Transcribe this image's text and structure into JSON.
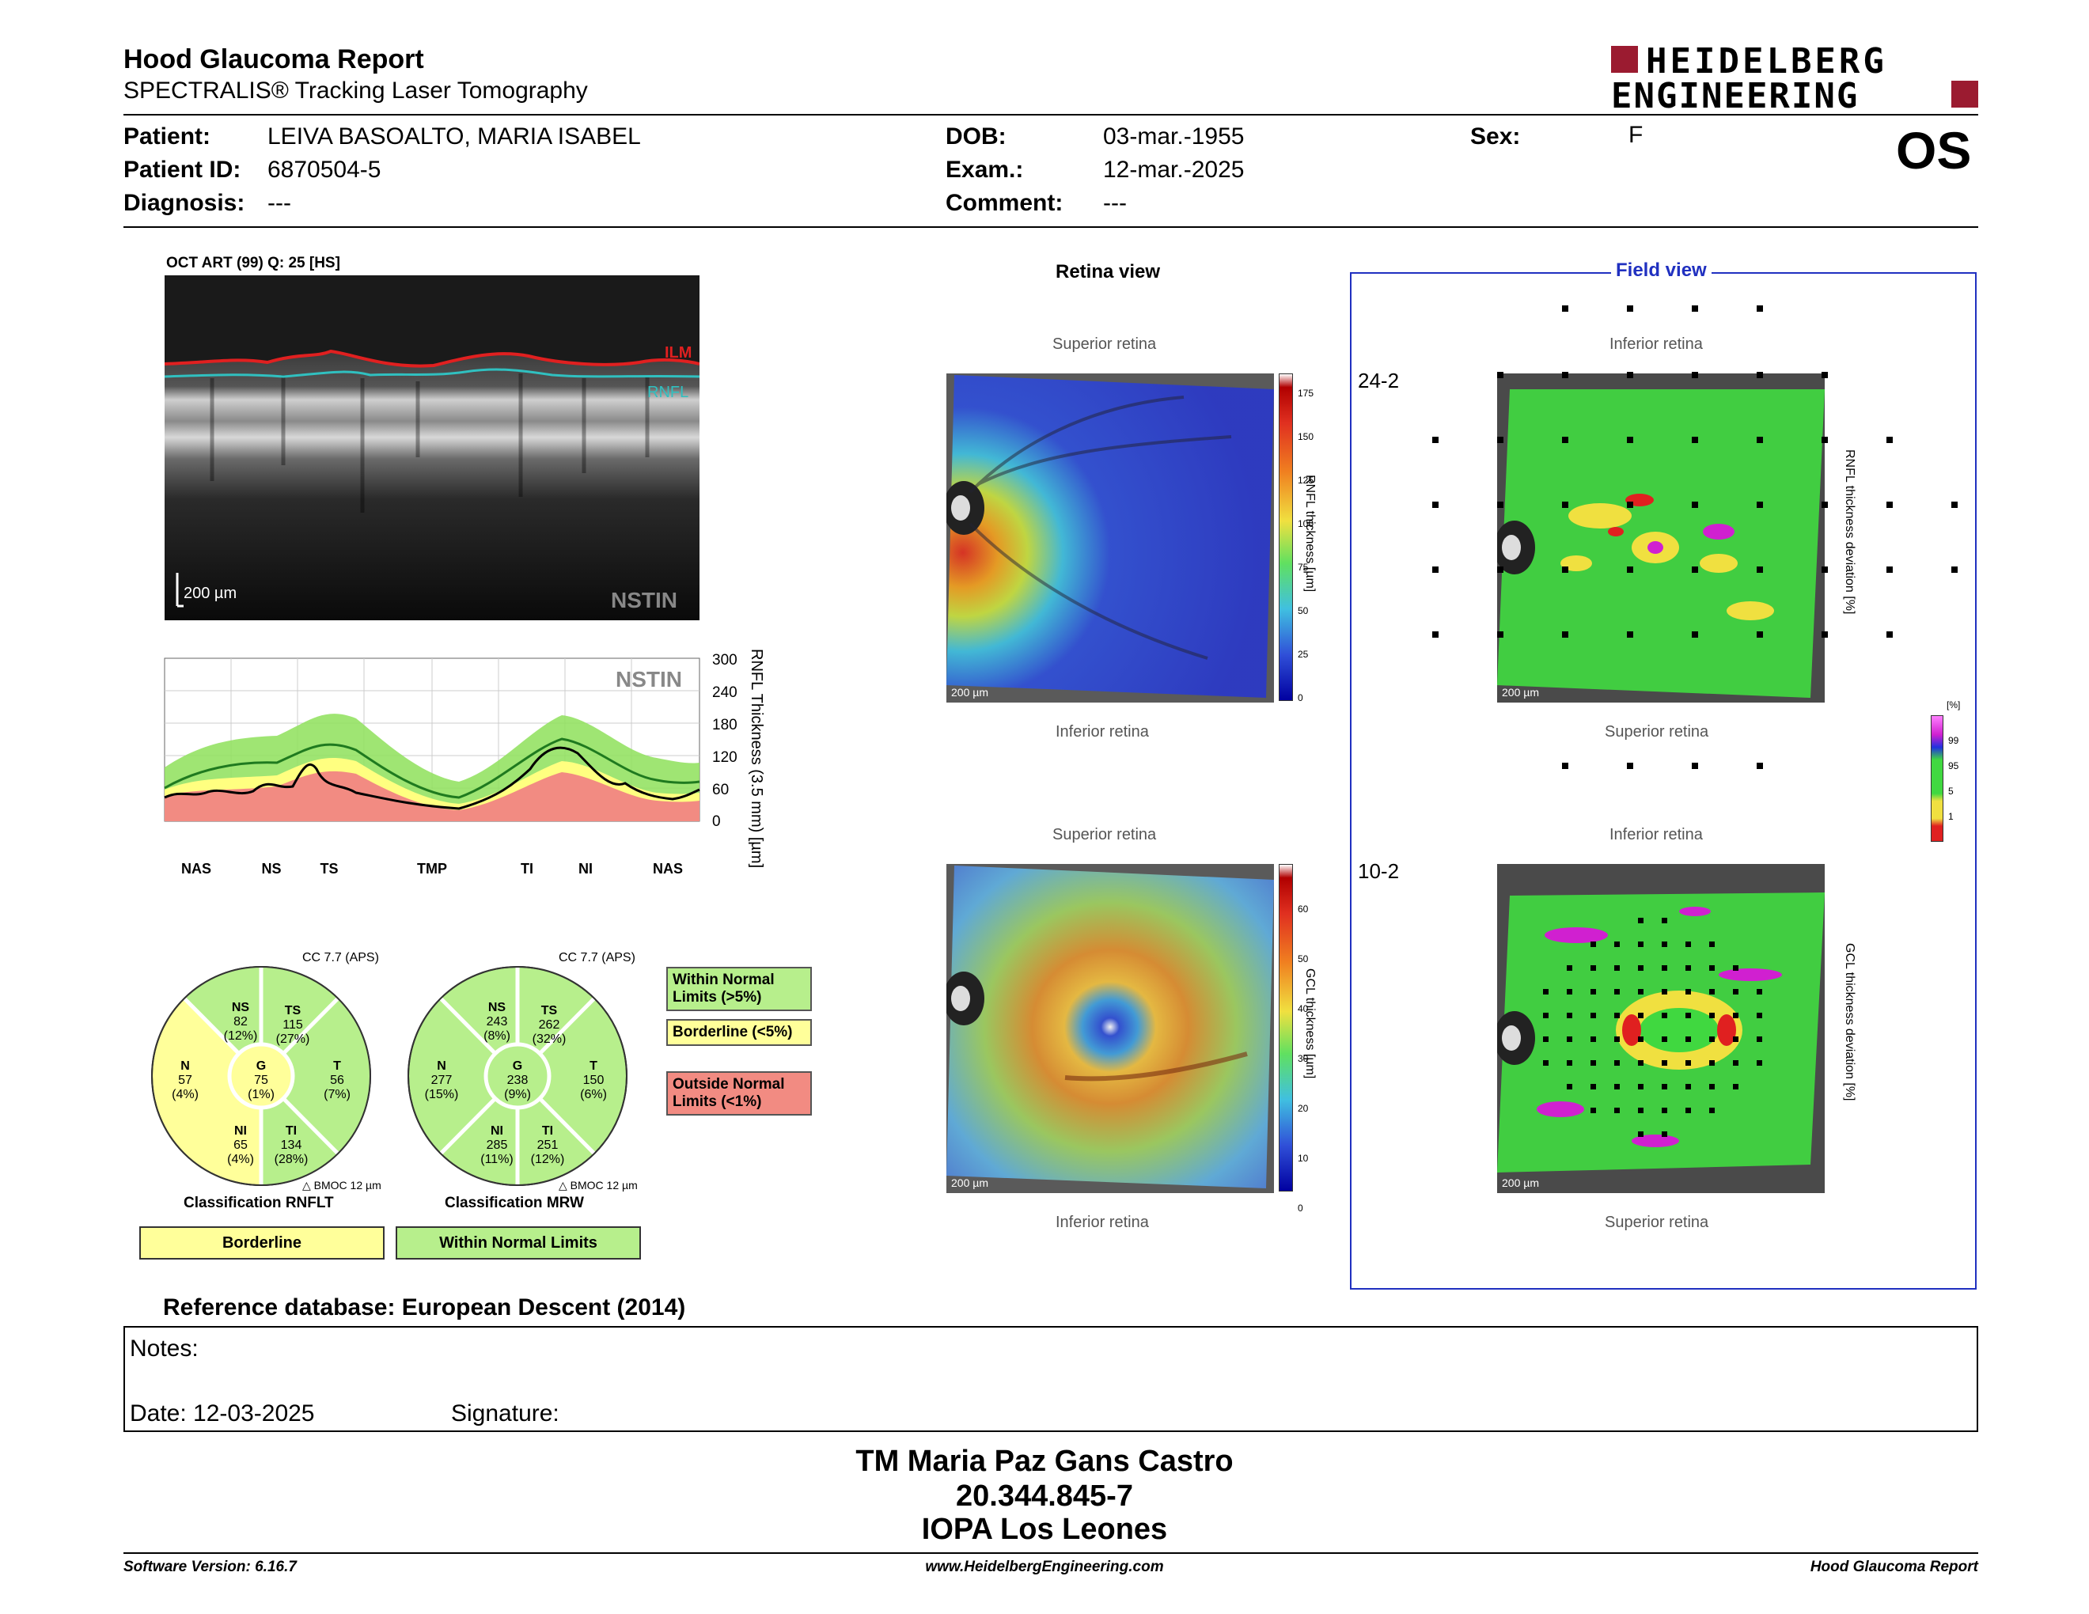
{
  "header": {
    "title": "Hood Glaucoma Report",
    "subtitle": "SPECTRALIS® Tracking Laser Tomography",
    "logo_line1": "HEIDELBERG",
    "logo_line2": "ENGINEERING",
    "eye": "OS"
  },
  "patient": {
    "patient_label": "Patient:",
    "patient_value": "LEIVA BASOALTO, MARIA ISABEL",
    "id_label": "Patient ID:",
    "id_value": "6870504-5",
    "diagnosis_label": "Diagnosis:",
    "diagnosis_value": "---",
    "dob_label": "DOB:",
    "dob_value": "03-mar.-1955",
    "exam_label": "Exam.:",
    "exam_value": "12-mar.-2025",
    "comment_label": "Comment:",
    "comment_value": "---",
    "sex_label": "Sex:",
    "sex_value": "F"
  },
  "oct": {
    "header": "OCT ART (99) Q: 25 [HS]",
    "ilm": "ILM",
    "rnfl": "RNFL",
    "scale": "200 µm",
    "nstin": "NSTIN"
  },
  "profile": {
    "nstin": "NSTIN",
    "ylabel": "RNFL Thickness (3.5 mm) [µm]",
    "yticks": [
      "300",
      "240",
      "180",
      "120",
      "60",
      "0"
    ],
    "sectors": [
      "NAS",
      "NS",
      "TS",
      "TMP",
      "TI",
      "NI",
      "NAS"
    ],
    "colors": {
      "green": "#8ee05a",
      "yellow": "#ffff80",
      "red": "#f28b82"
    }
  },
  "pie_rnflt": {
    "cc": "CC 7.7 (APS)",
    "ns": {
      "name": "NS",
      "value": "82",
      "pct": "(12%)"
    },
    "ts": {
      "name": "TS",
      "value": "115",
      "pct": "(27%)"
    },
    "n": {
      "name": "N",
      "value": "57",
      "pct": "(4%)"
    },
    "g": {
      "name": "G",
      "value": "75",
      "pct": "(1%)"
    },
    "t": {
      "name": "T",
      "value": "56",
      "pct": "(7%)"
    },
    "ni": {
      "name": "NI",
      "value": "65",
      "pct": "(4%)"
    },
    "ti": {
      "name": "TI",
      "value": "134",
      "pct": "(28%)"
    },
    "bmo": "BMOC 12 µm",
    "classification": "Classification RNFLT",
    "result": "Borderline"
  },
  "pie_mrw": {
    "cc": "CC 7.7 (APS)",
    "ns": {
      "name": "NS",
      "value": "243",
      "pct": "(8%)"
    },
    "ts": {
      "name": "TS",
      "value": "262",
      "pct": "(32%)"
    },
    "n": {
      "name": "N",
      "value": "277",
      "pct": "(15%)"
    },
    "g": {
      "name": "G",
      "value": "238",
      "pct": "(9%)"
    },
    "t": {
      "name": "T",
      "value": "150",
      "pct": "(6%)"
    },
    "ni": {
      "name": "NI",
      "value": "285",
      "pct": "(11%)"
    },
    "ti": {
      "name": "TI",
      "value": "251",
      "pct": "(12%)"
    },
    "bmo": "BMOC 12 µm",
    "classification": "Classification MRW",
    "result": "Within Normal Limits"
  },
  "legend": {
    "within": "Within Normal Limits (>5%)",
    "borderline": "Borderline (<5%)",
    "outside": "Outside Normal Limits (<1%)"
  },
  "retina": {
    "title": "Retina view",
    "superior": "Superior retina",
    "inferior": "Inferior retina",
    "scale": "200 µm",
    "rnfl_label": "RNFL thickness [µm]",
    "rnfl_ticks": [
      "175",
      "150",
      "125",
      "100",
      "75",
      "50",
      "25",
      "0"
    ],
    "gcl_label": "GCL thickness [µm]",
    "gcl_ticks": [
      "60",
      "50",
      "40",
      "30",
      "20",
      "10",
      "0"
    ]
  },
  "field": {
    "title": "Field view",
    "inferior": "Inferior retina",
    "superior": "Superior retina",
    "label_242": "24-2",
    "label_102": "10-2",
    "rnfl_dev": "RNFL thickness deviation [%]",
    "gcl_dev": "GCL thickness deviation [%]",
    "dev_unit": "[%]",
    "dev_ticks": [
      "99",
      "95",
      "5",
      "1"
    ]
  },
  "footer": {
    "refdb": "Reference database: European Descent (2014)",
    "notes": "Notes:",
    "date": "Date: 12-03-2025",
    "signature": "Signature:",
    "name": "TM Maria Paz Gans Castro",
    "rut": "20.344.845-7",
    "clinic": "IOPA Los Leones",
    "software": "Software Version: 6.16.7",
    "website": "www.HeidelbergEngineering.com",
    "report": "Hood Glaucoma Report"
  }
}
